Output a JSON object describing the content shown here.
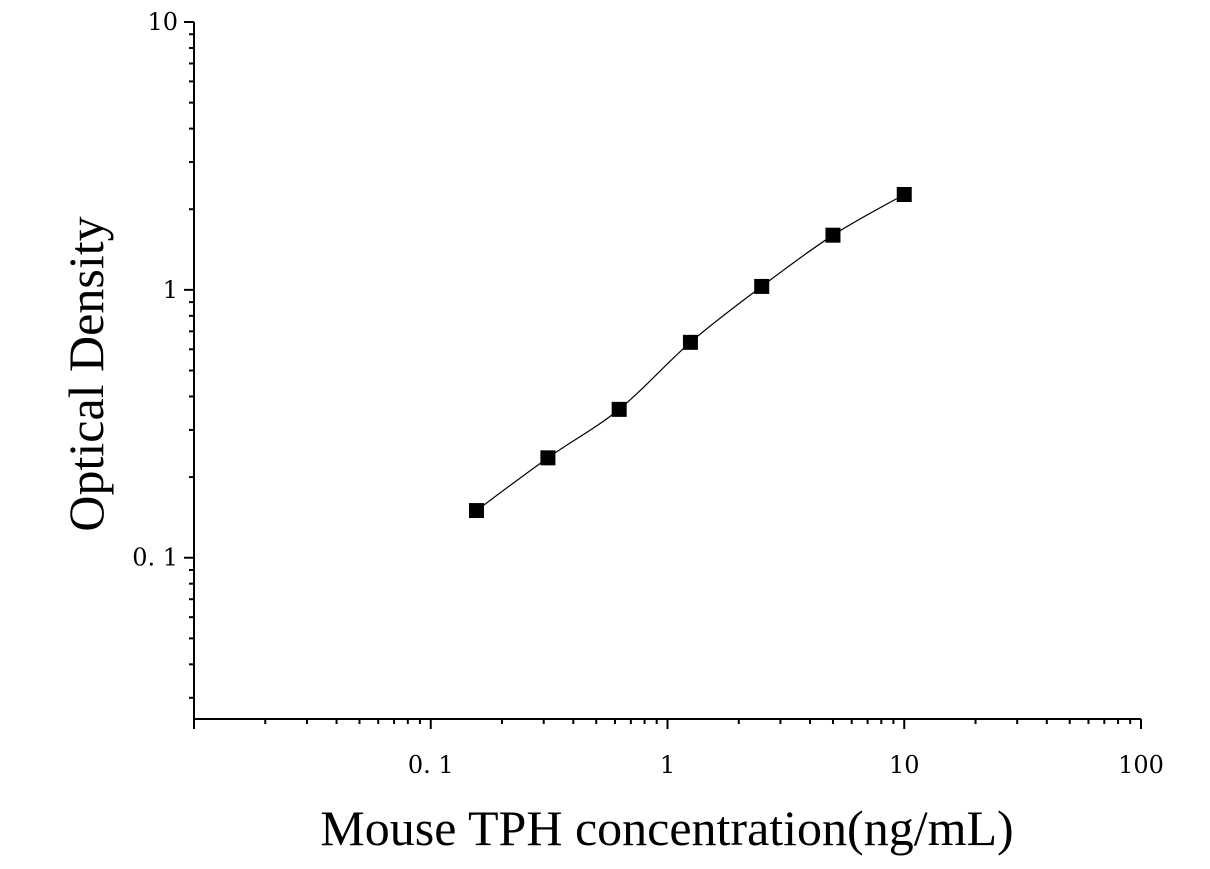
{
  "chart_data": {
    "type": "scatter",
    "xlabel": "Mouse TPH concentration(ng/mL)",
    "ylabel": "Optical Density",
    "x_scale": "log",
    "y_scale": "log",
    "xlim": [
      0.01,
      100
    ],
    "ylim": [
      0.025,
      10
    ],
    "x_ticks": [
      {
        "value": 0.1,
        "label": "0. 1"
      },
      {
        "value": 1,
        "label": "1"
      },
      {
        "value": 10,
        "label": "10"
      },
      {
        "value": 100,
        "label": "100"
      }
    ],
    "y_ticks": [
      {
        "value": 0.1,
        "label": "0. 1"
      },
      {
        "value": 1,
        "label": "1"
      },
      {
        "value": 10,
        "label": "10"
      }
    ],
    "grid": false,
    "marker": "square",
    "fit_curve": true,
    "series": [
      {
        "points": [
          {
            "x": 0.156,
            "y": 0.15
          },
          {
            "x": 0.3125,
            "y": 0.236
          },
          {
            "x": 0.625,
            "y": 0.358
          },
          {
            "x": 1.25,
            "y": 0.637
          },
          {
            "x": 2.5,
            "y": 1.03
          },
          {
            "x": 5,
            "y": 1.6
          },
          {
            "x": 10,
            "y": 2.27
          }
        ]
      }
    ],
    "colors": {
      "marker": "#000000",
      "curve": "#000000",
      "axis": "#000000"
    }
  }
}
